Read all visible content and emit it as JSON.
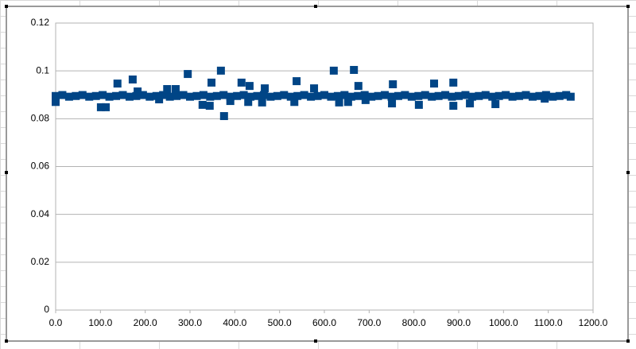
{
  "chart_data": {
    "type": "scatter",
    "x": [
      0,
      15,
      30,
      45,
      60,
      75,
      90,
      105,
      120,
      135,
      150,
      165,
      180,
      195,
      210,
      225,
      240,
      255,
      270,
      285,
      300,
      315,
      330,
      345,
      360,
      375,
      390,
      405,
      420,
      435,
      450,
      465,
      480,
      495,
      510,
      525,
      540,
      555,
      570,
      585,
      600,
      615,
      630,
      645,
      660,
      675,
      690,
      705,
      720,
      735,
      750,
      765,
      780,
      795,
      810,
      825,
      840,
      855,
      870,
      885,
      900,
      915,
      930,
      945,
      960,
      975,
      990,
      1005,
      1020,
      1035,
      1050,
      1065,
      1080,
      1095,
      1110,
      1125,
      1140,
      1150,
      101,
      112,
      138,
      172,
      295,
      369,
      376,
      348,
      328,
      344,
      415,
      538,
      621,
      666,
      676,
      753,
      811,
      845,
      888,
      888,
      982,
      925,
      0,
      183,
      467,
      433,
      249,
      268,
      430,
      633,
      653,
      577,
      751,
      1092,
      390,
      461,
      231,
      533,
      692
    ],
    "values": [
      0.0895,
      0.0899,
      0.0892,
      0.0895,
      0.0899,
      0.0892,
      0.0895,
      0.0899,
      0.0892,
      0.0895,
      0.0899,
      0.0892,
      0.0895,
      0.0899,
      0.0892,
      0.0895,
      0.0899,
      0.0892,
      0.0895,
      0.0899,
      0.0892,
      0.0895,
      0.0899,
      0.0892,
      0.0895,
      0.0899,
      0.0892,
      0.0895,
      0.0899,
      0.0892,
      0.0895,
      0.0899,
      0.0892,
      0.0895,
      0.0899,
      0.0892,
      0.0895,
      0.0899,
      0.0892,
      0.0895,
      0.0899,
      0.0892,
      0.0895,
      0.0899,
      0.0892,
      0.0895,
      0.0899,
      0.0892,
      0.0895,
      0.0899,
      0.0892,
      0.0895,
      0.0899,
      0.0892,
      0.0895,
      0.0899,
      0.0892,
      0.0895,
      0.0899,
      0.0892,
      0.0895,
      0.0899,
      0.0892,
      0.0895,
      0.0899,
      0.0892,
      0.0895,
      0.0899,
      0.0892,
      0.0895,
      0.0899,
      0.0892,
      0.0895,
      0.0899,
      0.0892,
      0.0895,
      0.0899,
      0.0892,
      0.0848,
      0.0848,
      0.0947,
      0.0964,
      0.0987,
      0.1001,
      0.0811,
      0.0951,
      0.0858,
      0.0854,
      0.0951,
      0.0957,
      0.1001,
      0.1004,
      0.0937,
      0.0944,
      0.0858,
      0.0947,
      0.0854,
      0.0951,
      0.0861,
      0.0864,
      0.087,
      0.0914,
      0.0927,
      0.0937,
      0.0924,
      0.0924,
      0.087,
      0.0868,
      0.087,
      0.0927,
      0.0864,
      0.0884,
      0.0874,
      0.0868,
      0.0881,
      0.087,
      0.0878
    ],
    "color": "#004586",
    "xlim": [
      0,
      1200
    ],
    "xticks": [
      {
        "value": 0,
        "label": "0.0"
      },
      {
        "value": 100,
        "label": "100.0"
      },
      {
        "value": 200,
        "label": "200.0"
      },
      {
        "value": 300,
        "label": "300.0"
      },
      {
        "value": 400,
        "label": "400.0"
      },
      {
        "value": 500,
        "label": "500.0"
      },
      {
        "value": 600,
        "label": "600.0"
      },
      {
        "value": 700,
        "label": "700.0"
      },
      {
        "value": 800,
        "label": "800.0"
      },
      {
        "value": 900,
        "label": "900.0"
      },
      {
        "value": 1000,
        "label": "1000.0"
      },
      {
        "value": 1100,
        "label": "1100.0"
      },
      {
        "value": 1200,
        "label": "1200.0"
      }
    ],
    "ylim": [
      0,
      0.12
    ],
    "yticks": [
      0,
      0.02,
      0.04,
      0.06,
      0.08,
      0.1,
      0.12
    ],
    "grid": true
  }
}
